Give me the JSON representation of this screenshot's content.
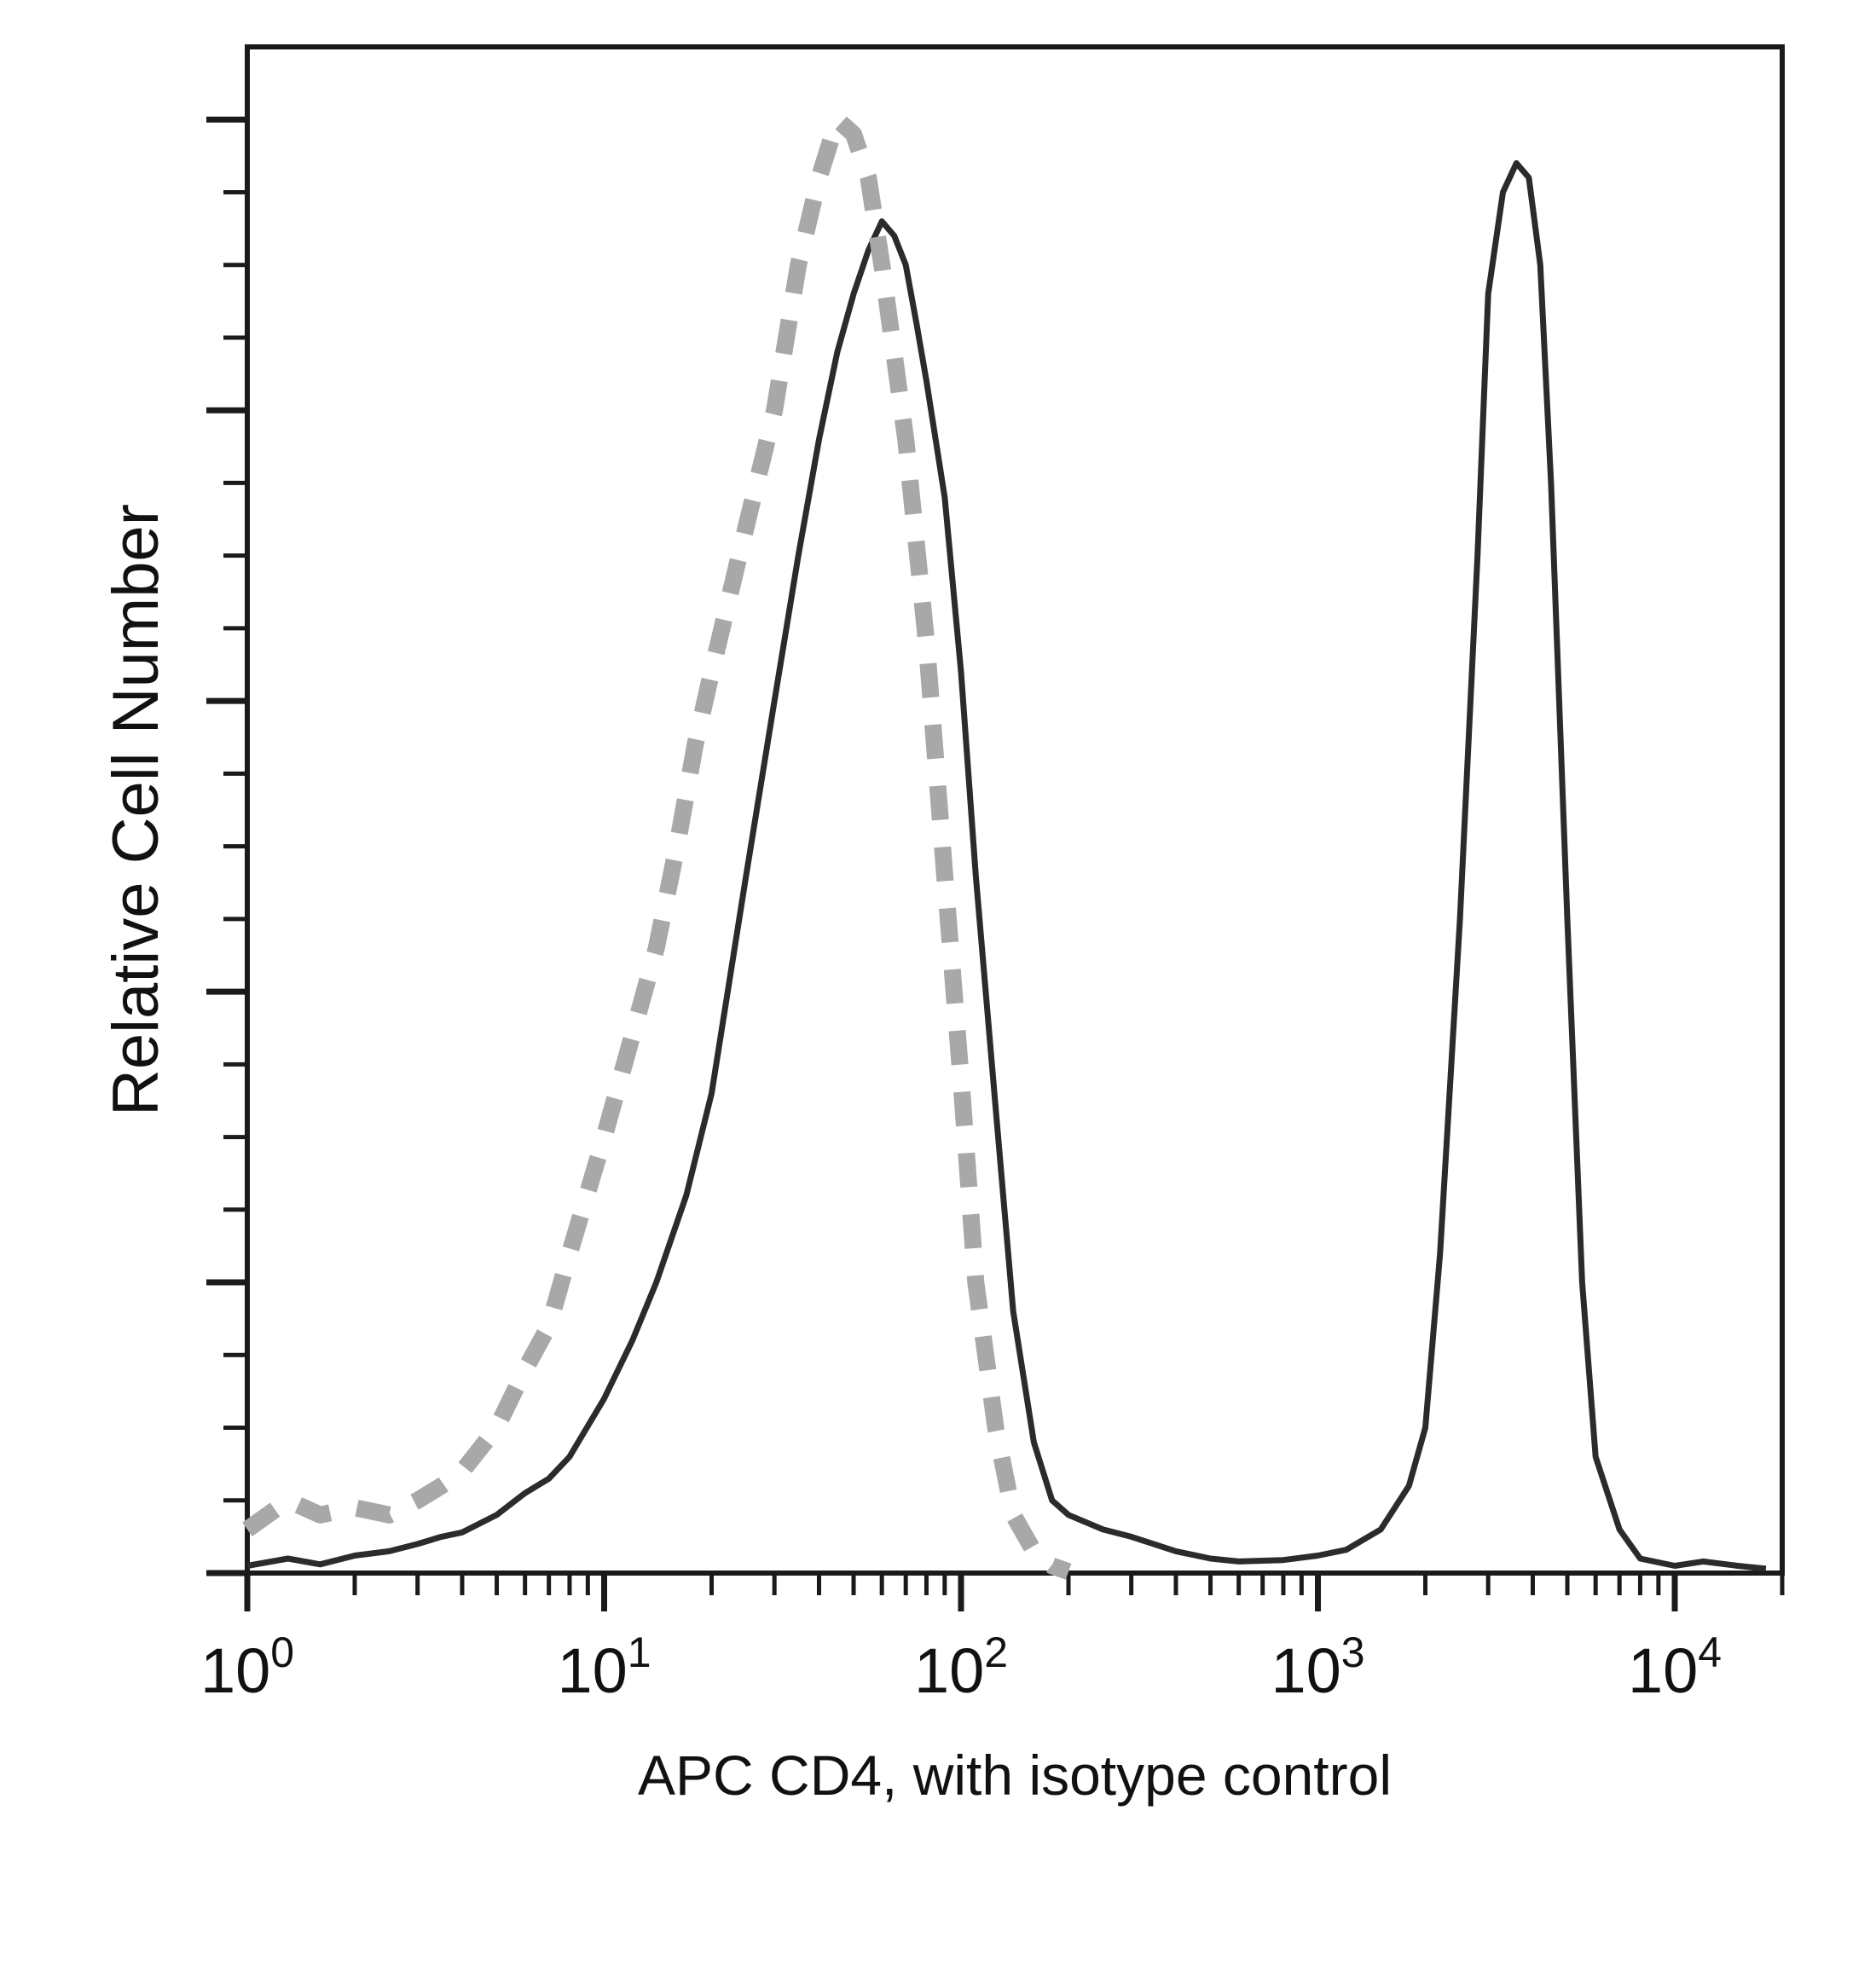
{
  "chart_data": {
    "type": "line",
    "xlabel": "APC CD4, with isotype control",
    "ylabel": "Relative Cell Number",
    "xscale": "log",
    "xlim": [
      1,
      20000
    ],
    "ylim": [
      0,
      105
    ],
    "grid": false,
    "legend": "none",
    "x_tick_labels": [
      {
        "base": "10",
        "exp": "0",
        "value": 1
      },
      {
        "base": "10",
        "exp": "1",
        "value": 10
      },
      {
        "base": "10",
        "exp": "2",
        "value": 100
      },
      {
        "base": "10",
        "exp": "3",
        "value": 1000
      },
      {
        "base": "10",
        "exp": "4",
        "value": 10000
      }
    ],
    "y_major_ticks": [
      0,
      20,
      40,
      60,
      80,
      100
    ],
    "y_minor_step": 5,
    "series": [
      {
        "style": "solid",
        "color": "#2b2b2b",
        "points": [
          [
            1.0,
            0.5
          ],
          [
            1.3,
            1.0
          ],
          [
            1.6,
            0.6
          ],
          [
            2.0,
            1.2
          ],
          [
            2.5,
            1.5
          ],
          [
            3.0,
            2.0
          ],
          [
            3.5,
            2.5
          ],
          [
            4.0,
            2.8
          ],
          [
            5.0,
            4.0
          ],
          [
            6.0,
            5.5
          ],
          [
            7.0,
            6.5
          ],
          [
            8.0,
            8.0
          ],
          [
            10.0,
            12.0
          ],
          [
            12.0,
            16.0
          ],
          [
            14.0,
            20.0
          ],
          [
            17.0,
            26.0
          ],
          [
            20.0,
            33.0
          ],
          [
            25.0,
            48.0
          ],
          [
            30.0,
            60.0
          ],
          [
            35.0,
            70.0
          ],
          [
            40.0,
            78.0
          ],
          [
            45.0,
            84.0
          ],
          [
            50.0,
            88.0
          ],
          [
            55.0,
            91.0
          ],
          [
            60.0,
            93.0
          ],
          [
            65.0,
            92.0
          ],
          [
            70.0,
            90.0
          ],
          [
            75.0,
            86.0
          ],
          [
            80.0,
            82.0
          ],
          [
            90.0,
            74.0
          ],
          [
            100.0,
            62.0
          ],
          [
            110.0,
            48.0
          ],
          [
            125.0,
            32.0
          ],
          [
            140.0,
            18.0
          ],
          [
            160.0,
            9.0
          ],
          [
            180.0,
            5.0
          ],
          [
            200.0,
            4.0
          ],
          [
            250.0,
            3.0
          ],
          [
            300.0,
            2.5
          ],
          [
            400.0,
            1.5
          ],
          [
            500.0,
            1.0
          ],
          [
            600.0,
            0.8
          ],
          [
            800.0,
            0.9
          ],
          [
            1000.0,
            1.2
          ],
          [
            1200.0,
            1.6
          ],
          [
            1500.0,
            3.0
          ],
          [
            1800.0,
            6.0
          ],
          [
            2000.0,
            10.0
          ],
          [
            2200.0,
            22.0
          ],
          [
            2500.0,
            45.0
          ],
          [
            2800.0,
            70.0
          ],
          [
            3000.0,
            88.0
          ],
          [
            3300.0,
            95.0
          ],
          [
            3600.0,
            97.0
          ],
          [
            3900.0,
            96.0
          ],
          [
            4200.0,
            90.0
          ],
          [
            4500.0,
            75.0
          ],
          [
            5000.0,
            45.0
          ],
          [
            5500.0,
            20.0
          ],
          [
            6000.0,
            8.0
          ],
          [
            7000.0,
            3.0
          ],
          [
            8000.0,
            1.0
          ],
          [
            10000.0,
            0.5
          ],
          [
            12000.0,
            0.8
          ],
          [
            15000.0,
            0.5
          ],
          [
            18000.0,
            0.3
          ]
        ]
      },
      {
        "style": "dashed",
        "color": "#a8a8a8",
        "points": [
          [
            1.0,
            3.0
          ],
          [
            1.3,
            5.0
          ],
          [
            1.6,
            4.0
          ],
          [
            2.0,
            4.5
          ],
          [
            2.5,
            4.0
          ],
          [
            3.0,
            5.0
          ],
          [
            3.5,
            6.0
          ],
          [
            4.0,
            7.0
          ],
          [
            5.0,
            10.0
          ],
          [
            6.0,
            14.0
          ],
          [
            7.0,
            17.0
          ],
          [
            8.0,
            22.0
          ],
          [
            10.0,
            30.0
          ],
          [
            12.0,
            37.0
          ],
          [
            14.0,
            43.0
          ],
          [
            16.0,
            50.0
          ],
          [
            18.0,
            57.0
          ],
          [
            20.0,
            62.0
          ],
          [
            25.0,
            72.0
          ],
          [
            30.0,
            80.0
          ],
          [
            35.0,
            90.0
          ],
          [
            40.0,
            96.0
          ],
          [
            45.0,
            100.0
          ],
          [
            50.0,
            99.0
          ],
          [
            55.0,
            96.0
          ],
          [
            60.0,
            90.0
          ],
          [
            70.0,
            78.0
          ],
          [
            80.0,
            64.0
          ],
          [
            90.0,
            48.0
          ],
          [
            100.0,
            34.0
          ],
          [
            110.0,
            20.0
          ],
          [
            125.0,
            10.0
          ],
          [
            140.0,
            4.0
          ],
          [
            160.0,
            1.5
          ],
          [
            180.0,
            0.5
          ],
          [
            200.0,
            0.1
          ]
        ]
      }
    ]
  }
}
